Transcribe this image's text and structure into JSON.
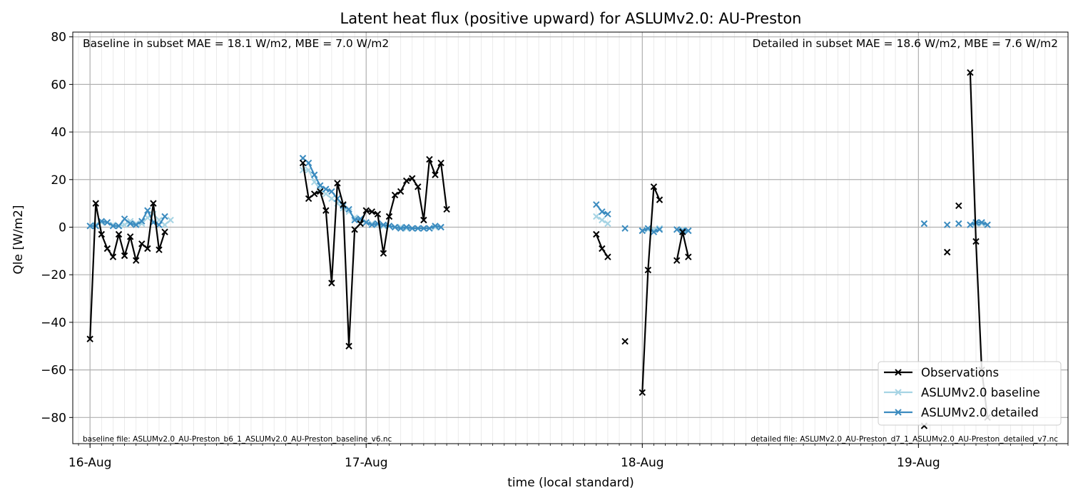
{
  "chart_data": {
    "type": "line",
    "title": "Latent heat flux (positive upward) for ASLUMv2.0: AU-Preston",
    "xlabel": "time (local standard)",
    "ylabel": "Qle [W/m2]",
    "ylim": [
      -91,
      82
    ],
    "xlim_hours": [
      -1.5,
      85.0
    ],
    "x_unit": "hours after 2000-08-16 00:00 (local standard)",
    "yticks": [
      80,
      60,
      40,
      20,
      0,
      -20,
      -40,
      -60,
      -80
    ],
    "ytick_labels": [
      "80",
      "60",
      "40",
      "20",
      "0",
      "−20",
      "−40",
      "−60",
      "−80"
    ],
    "xticks": [
      {
        "label": "16-Aug",
        "hour": 0
      },
      {
        "label": "17-Aug",
        "hour": 24
      },
      {
        "label": "18-Aug",
        "hour": 48
      },
      {
        "label": "19-Aug",
        "hour": 72
      }
    ],
    "grid": true,
    "legend_position": "lower right",
    "annotations": {
      "top_left": "Baseline in subset MAE = 18.1 W/m2, MBE = 7.0 W/m2",
      "top_right": "Detailed in subset MAE = 18.6 W/m2, MBE = 7.6 W/m2",
      "bottom_left": "baseline file: ASLUMv2.0_AU-Preston_b6_1_ASLUMv2.0_AU-Preston_baseline_v6.nc",
      "bottom_right": "detailed file: ASLUMv2.0_AU-Preston_d7_1_ASLUMv2.0_AU-Preston_detailed_v7.nc"
    },
    "series": [
      {
        "name": "ASLUMv2.0 baseline",
        "color": "#a6d4e4",
        "marker": "x",
        "segments": [
          [
            [
              0.0,
              0.5
            ],
            [
              0.5,
              1.0
            ],
            [
              1.0,
              2.0
            ],
            [
              1.5,
              2.0
            ],
            [
              2.0,
              1.0
            ],
            [
              2.5,
              0.5
            ],
            [
              3.0,
              1.0
            ],
            [
              3.5,
              2.5
            ],
            [
              4.0,
              1.5
            ],
            [
              4.5,
              1.5
            ],
            [
              5.0,
              4.0
            ],
            [
              5.5,
              5.5
            ],
            [
              6.0,
              3.0
            ],
            [
              6.5,
              1.0
            ],
            [
              7.0,
              3.0
            ]
          ],
          [
            [
              18.5,
              24.0
            ],
            [
              19.0,
              24.0
            ],
            [
              19.5,
              19.0
            ],
            [
              20.0,
              16.0
            ],
            [
              20.5,
              14.0
            ],
            [
              21.0,
              12.0
            ],
            [
              21.5,
              10.0
            ],
            [
              22.0,
              8.0
            ],
            [
              22.5,
              6.5
            ],
            [
              23.0,
              4.0
            ],
            [
              23.5,
              3.0
            ],
            [
              24.0,
              2.0
            ],
            [
              24.5,
              1.5
            ],
            [
              25.0,
              1.0
            ],
            [
              25.5,
              0.5
            ],
            [
              26.0,
              0.5
            ],
            [
              26.5,
              0.0
            ],
            [
              27.0,
              0.0
            ],
            [
              27.5,
              -0.5
            ],
            [
              28.0,
              -0.5
            ],
            [
              28.5,
              -0.5
            ],
            [
              29.0,
              -0.5
            ],
            [
              29.5,
              -0.5
            ],
            [
              30.0,
              0.0
            ],
            [
              30.5,
              0.0
            ]
          ],
          [
            [
              44.0,
              4.5
            ],
            [
              44.5,
              3.0
            ],
            [
              45.0,
              1.5
            ]
          ],
          [
            [
              46.5,
              -0.5
            ]
          ],
          [
            [
              48.0,
              -1.5
            ],
            [
              48.5,
              -1.0
            ],
            [
              49.0,
              -1.0
            ],
            [
              49.5,
              -0.5
            ]
          ],
          [
            [
              51.0,
              -1.0
            ],
            [
              51.5,
              -1.0
            ],
            [
              52.0,
              -1.5
            ]
          ],
          [
            [
              72.5,
              1.5
            ]
          ],
          [
            [
              74.5,
              1.0
            ]
          ],
          [
            [
              75.5,
              1.5
            ]
          ],
          [
            [
              76.5,
              1.0
            ],
            [
              77.0,
              1.5
            ],
            [
              77.5,
              1.5
            ],
            [
              78.0,
              1.0
            ]
          ]
        ]
      },
      {
        "name": "ASLUMv2.0 detailed",
        "color": "#3b8bbf",
        "marker": "x",
        "segments": [
          [
            [
              0.0,
              0.5
            ],
            [
              0.5,
              0.5
            ],
            [
              1.0,
              2.5
            ],
            [
              1.5,
              2.0
            ],
            [
              2.0,
              0.5
            ],
            [
              2.5,
              0.5
            ],
            [
              3.0,
              3.5
            ],
            [
              3.5,
              1.5
            ],
            [
              4.0,
              1.0
            ],
            [
              4.5,
              2.5
            ],
            [
              5.0,
              7.0
            ],
            [
              5.5,
              2.0
            ],
            [
              6.0,
              1.0
            ],
            [
              6.5,
              4.5
            ]
          ],
          [
            [
              18.5,
              29.0
            ],
            [
              19.0,
              27.0
            ],
            [
              19.5,
              22.0
            ],
            [
              20.0,
              17.5
            ],
            [
              20.5,
              16.0
            ],
            [
              21.0,
              15.0
            ],
            [
              21.5,
              12.0
            ],
            [
              22.0,
              9.0
            ],
            [
              22.5,
              7.5
            ],
            [
              23.0,
              3.0
            ],
            [
              23.5,
              3.5
            ],
            [
              24.0,
              2.0
            ],
            [
              24.5,
              1.0
            ],
            [
              25.0,
              1.5
            ],
            [
              25.5,
              1.0
            ],
            [
              26.0,
              0.5
            ],
            [
              26.5,
              0.0
            ],
            [
              27.0,
              -0.5
            ],
            [
              27.5,
              0.0
            ],
            [
              28.0,
              -0.5
            ],
            [
              28.5,
              -0.5
            ],
            [
              29.0,
              -0.5
            ],
            [
              29.5,
              -0.5
            ],
            [
              30.0,
              0.5
            ],
            [
              30.5,
              0.0
            ]
          ],
          [
            [
              44.0,
              9.5
            ],
            [
              44.5,
              6.5
            ],
            [
              45.0,
              5.5
            ]
          ],
          [
            [
              46.5,
              -0.5
            ]
          ],
          [
            [
              48.0,
              -1.5
            ],
            [
              48.5,
              -0.5
            ],
            [
              49.0,
              -2.0
            ],
            [
              49.5,
              -1.0
            ]
          ],
          [
            [
              51.0,
              -1.0
            ],
            [
              51.5,
              -1.5
            ],
            [
              52.0,
              -1.5
            ]
          ],
          [
            [
              72.5,
              1.5
            ]
          ],
          [
            [
              74.5,
              1.0
            ]
          ],
          [
            [
              75.5,
              1.5
            ]
          ],
          [
            [
              76.5,
              1.0
            ],
            [
              77.0,
              2.0
            ],
            [
              77.5,
              2.0
            ],
            [
              78.0,
              1.0
            ]
          ]
        ]
      },
      {
        "name": "Observations",
        "color": "#000000",
        "marker": "x",
        "segments": [
          [
            [
              0.0,
              -47.0
            ],
            [
              0.5,
              10.0
            ],
            [
              1.0,
              -3.0
            ],
            [
              1.5,
              -9.0
            ],
            [
              2.0,
              -12.5
            ],
            [
              2.5,
              -3.0
            ],
            [
              3.0,
              -12.0
            ],
            [
              3.5,
              -4.0
            ],
            [
              4.0,
              -14.0
            ],
            [
              4.5,
              -7.0
            ],
            [
              5.0,
              -9.0
            ],
            [
              5.5,
              10.0
            ],
            [
              6.0,
              -9.5
            ],
            [
              6.5,
              -2.0
            ]
          ],
          [
            [
              18.5,
              27.0
            ],
            [
              19.0,
              12.0
            ],
            [
              19.5,
              14.0
            ],
            [
              20.0,
              15.0
            ],
            [
              20.5,
              7.0
            ],
            [
              21.0,
              -23.5
            ],
            [
              21.5,
              18.5
            ],
            [
              22.0,
              9.5
            ],
            [
              22.5,
              -50.0
            ],
            [
              23.0,
              -1.0
            ],
            [
              23.5,
              1.5
            ],
            [
              24.0,
              7.0
            ],
            [
              24.5,
              6.5
            ],
            [
              25.0,
              5.5
            ],
            [
              25.5,
              -11.0
            ],
            [
              26.0,
              4.5
            ],
            [
              26.5,
              13.5
            ],
            [
              27.0,
              15.0
            ],
            [
              27.5,
              19.5
            ],
            [
              28.0,
              20.5
            ],
            [
              28.5,
              17.0
            ],
            [
              29.0,
              3.0
            ],
            [
              29.5,
              28.5
            ],
            [
              30.0,
              22.0
            ],
            [
              30.5,
              27.0
            ],
            [
              31.0,
              7.5
            ]
          ],
          [
            [
              44.0,
              -3.0
            ],
            [
              44.5,
              -9.0
            ],
            [
              45.0,
              -12.5
            ]
          ],
          [
            [
              46.5,
              -48.0
            ]
          ],
          [
            [
              48.0,
              -69.5
            ],
            [
              48.5,
              -18.0
            ],
            [
              49.0,
              17.0
            ],
            [
              49.5,
              11.5
            ]
          ],
          [
            [
              51.0,
              -14.0
            ],
            [
              51.5,
              -2.0
            ],
            [
              52.0,
              -12.5
            ]
          ],
          [
            [
              72.5,
              -83.5
            ]
          ],
          [
            [
              74.5,
              -10.5
            ]
          ],
          [
            [
              75.5,
              9.0
            ]
          ],
          [
            [
              76.5,
              65.0
            ],
            [
              77.0,
              -6.0
            ],
            [
              77.5,
              -60.0
            ],
            [
              78.0,
              -80.0
            ]
          ]
        ]
      }
    ]
  }
}
